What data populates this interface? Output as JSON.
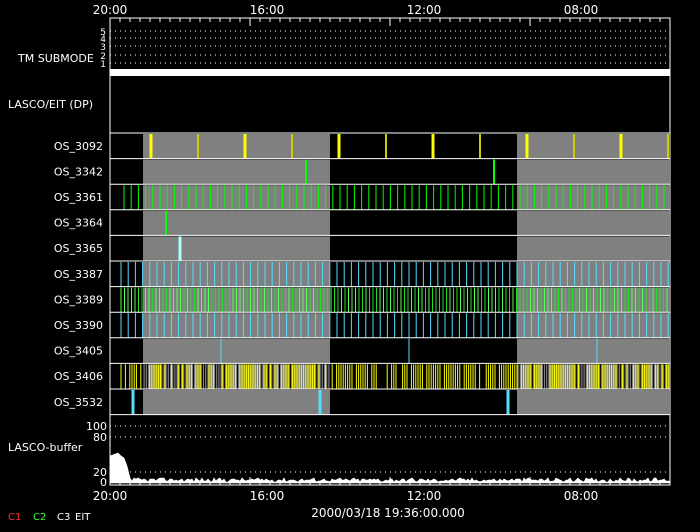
{
  "time_axis": {
    "top_labels": [
      "20:00",
      "16:00",
      "12:00",
      "08:00"
    ],
    "bottom_labels": [
      "20:00",
      "16:00",
      "12:00",
      "08:00"
    ]
  },
  "tm_submode": {
    "label": "TM SUBMODE",
    "ticks": [
      "5",
      "4",
      "3",
      "2",
      "1"
    ]
  },
  "lasco_eit_label": "LASCO/EIT (DP)",
  "rows": [
    {
      "name": "OS_3092",
      "color": "#ffff00",
      "kind": "sparse-yellow"
    },
    {
      "name": "OS_3342",
      "color": "#00ff00",
      "kind": "sparse"
    },
    {
      "name": "OS_3361",
      "color": "#00ff00",
      "kind": "dense"
    },
    {
      "name": "OS_3364",
      "color": "#00ff00",
      "kind": "single"
    },
    {
      "name": "OS_3365",
      "color": "#aaffff",
      "kind": "single"
    },
    {
      "name": "OS_3387",
      "color": "#55ddff",
      "kind": "dense"
    },
    {
      "name": "OS_3389",
      "color": "#33ff33",
      "kind": "very-dense"
    },
    {
      "name": "OS_3390",
      "color": "#55ddff",
      "kind": "dense"
    },
    {
      "name": "OS_3405",
      "color": "#55ddff",
      "kind": "sparse3"
    },
    {
      "name": "OS_3406",
      "color": "#ffff00",
      "kind": "ultra-dense"
    },
    {
      "name": "OS_3532",
      "color": "#55ddff",
      "kind": "thick3"
    }
  ],
  "buffer": {
    "label": "LASCO-buffer",
    "ticks": [
      "100",
      "80",
      "20",
      "0"
    ]
  },
  "timestamp": "2000/03/18 19:36:00.000",
  "legend": [
    {
      "label": "C1",
      "color": "#ff3333"
    },
    {
      "label": "C2",
      "color": "#33ff33"
    },
    {
      "label": "C3",
      "color": "#ffffff"
    },
    {
      "label": "EIT",
      "color": "#ffffff"
    }
  ],
  "shaded_color": "#808080"
}
